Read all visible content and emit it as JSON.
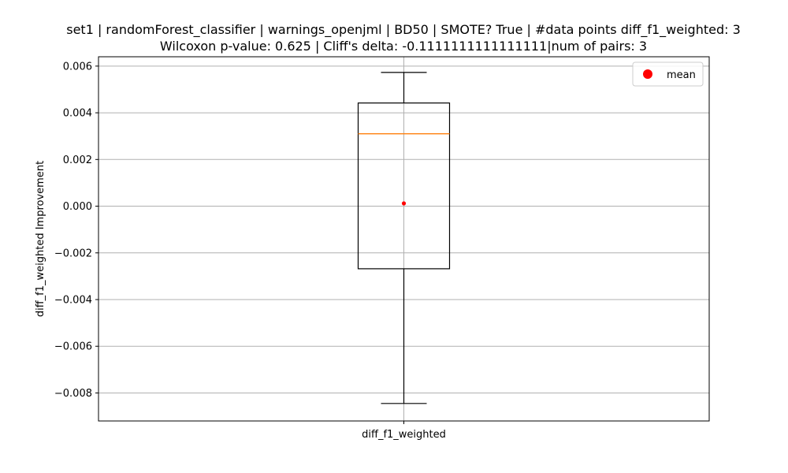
{
  "chart_data": {
    "type": "box",
    "title_line1": "set1 | randomForest_classifier | warnings_openjml | BD50 | SMOTE? True | #data points diff_f1_weighted: 3",
    "title_line2": "Wilcoxon p-value: 0.625 | Cliff's delta: -0.1111111111111111|num of pairs: 3",
    "xlabel": "",
    "ylabel": "diff_f1_weighted Improvement",
    "categories": [
      "diff_f1_weighted"
    ],
    "ylim": [
      -0.0092,
      0.0064
    ],
    "yticks": [
      -0.008,
      -0.006,
      -0.004,
      -0.002,
      0.0,
      0.002,
      0.004,
      0.006
    ],
    "ytick_labels": [
      "−0.008",
      "−0.006",
      "−0.004",
      "−0.002",
      "0.000",
      "0.002",
      "0.004",
      "0.006"
    ],
    "grid": true,
    "legend_position": "top-right",
    "legend": [
      {
        "name": "mean",
        "color": "#ff0000"
      }
    ],
    "box": {
      "whisker_low": -0.00845,
      "q1": -0.00268,
      "median": 0.0031,
      "q3": 0.00442,
      "whisker_high": 0.00573,
      "mean": 0.00012
    },
    "colors": {
      "box": "#000000",
      "median": "#ff7f0e",
      "mean": "#ff0000",
      "grid": "#b0b0b0"
    }
  }
}
